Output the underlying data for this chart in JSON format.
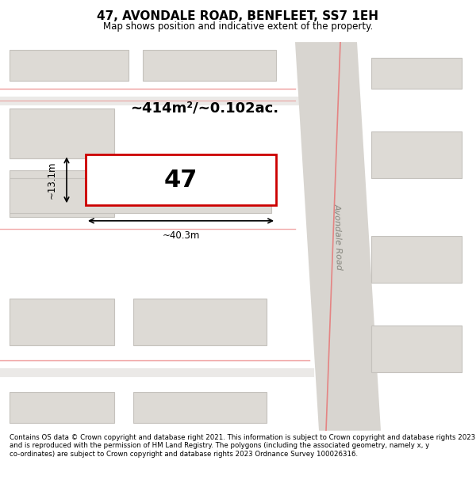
{
  "title": "47, AVONDALE ROAD, BENFLEET, SS7 1EH",
  "subtitle": "Map shows position and indicative extent of the property.",
  "footer": "Contains OS data © Crown copyright and database right 2021. This information is subject to Crown copyright and database rights 2023 and is reproduced with the permission of HM Land Registry. The polygons (including the associated geometry, namely x, y co-ordinates) are subject to Crown copyright and database rights 2023 Ordnance Survey 100026316.",
  "bg_color": "#f5f5f0",
  "map_bg": "#f0ede8",
  "road_color": "#e8e8e8",
  "building_fill": "#e8e4e0",
  "building_edge": "#cccccc",
  "highlight_fill": "#ffffff",
  "highlight_edge": "#cc0000",
  "road_line_color": "#e8a0a0",
  "area_text": "~414m²/~0.102ac.",
  "property_number": "47",
  "dim_width": "~40.3m",
  "dim_height": "~13.1m",
  "street_label": "Avondale Road"
}
